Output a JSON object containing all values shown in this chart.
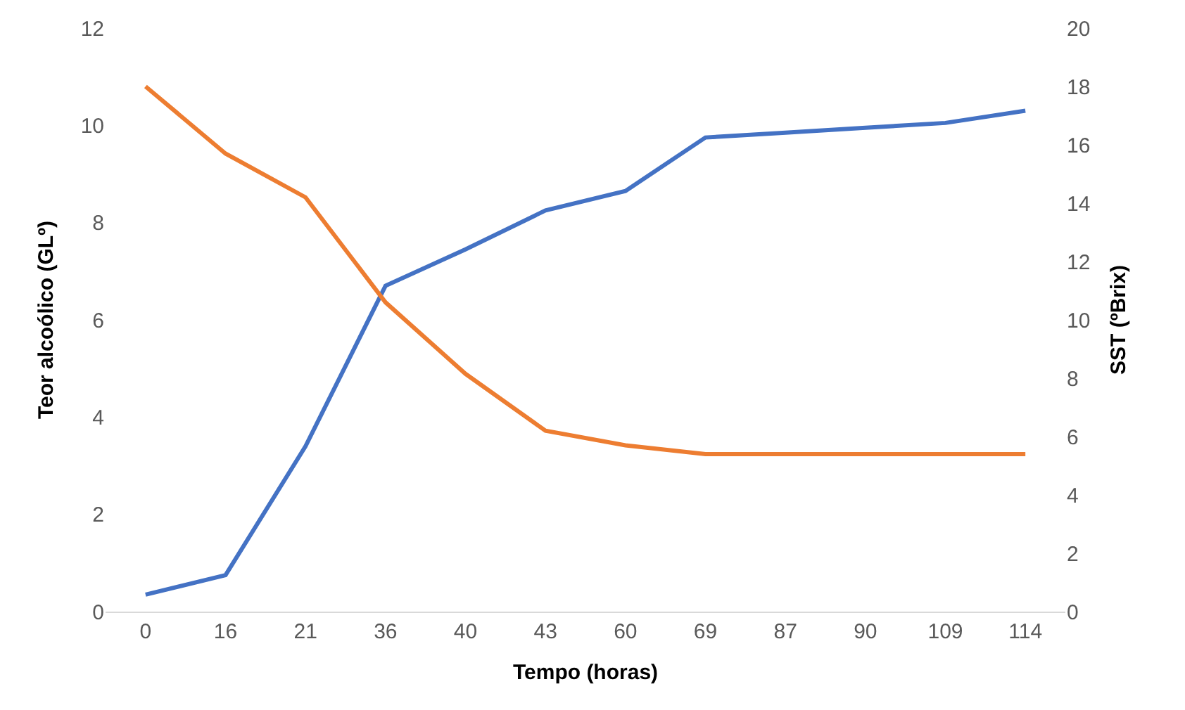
{
  "chart_data": {
    "type": "line",
    "xlabel": "Tempo (horas)",
    "ylabel": "Teor alcoólico (GLº)",
    "y2label": "SST (ºBrix)",
    "categories": [
      "0",
      "16",
      "21",
      "36",
      "40",
      "43",
      "60",
      "69",
      "87",
      "90",
      "109",
      "114"
    ],
    "series": [
      {
        "color": "#4472c4",
        "values": [
          0.35,
          0.75,
          3.4,
          6.7,
          7.45,
          8.25,
          8.65,
          9.75,
          9.85,
          9.95,
          10.05,
          10.3
        ]
      },
      {
        "color": "#ed7d31",
        "axis": "y2",
        "values": [
          18.0,
          15.7,
          14.2,
          10.6,
          8.15,
          6.2,
          5.7,
          5.4,
          5.4,
          5.4,
          5.4,
          5.4
        ]
      }
    ],
    "ylim": [
      0,
      12
    ],
    "yticks": [
      0,
      2,
      4,
      6,
      8,
      10,
      12
    ],
    "y2lim": [
      0,
      20
    ],
    "y2ticks": [
      0,
      2,
      4,
      6,
      8,
      10,
      12,
      14,
      16,
      18,
      20
    ],
    "marker": "none",
    "line_style": "solid"
  }
}
